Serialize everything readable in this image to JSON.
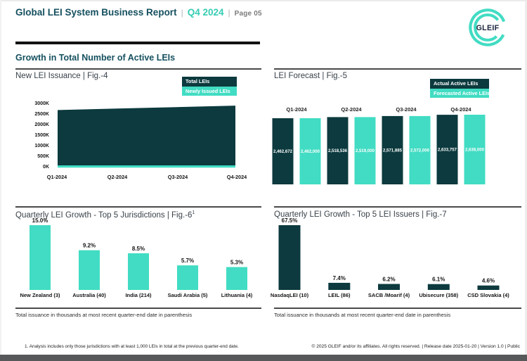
{
  "header": {
    "title": "Global LEI System Business Report",
    "sep": "|",
    "period": "Q4 2024",
    "page": "Page 05"
  },
  "logo": {
    "text": "GLEIF"
  },
  "section": {
    "title": "Growth in Total Number of Active LEIs"
  },
  "colors": {
    "dark_teal": "#0c3a3e",
    "turquoise": "#41dcc3",
    "header_teal": "#15505f",
    "accent_teal": "#36cdb4",
    "footer_bar": "#57585a"
  },
  "chart_notes": {
    "left": "Total issuance in thousands at most recent quarter-end date in parenthesis",
    "right": "Total issuance in thousands at most recent quarter-end date in parenthesis"
  },
  "footer": {
    "footnote": "1. Analysis includes only those jurisdictions with at least 1,000 LEIs in total at the previous quarter-end date.",
    "copyright": "© 2025 GLEIF and/or its affiliates. All rights reserved. | Release date 2025-01-20 | Version 1.0 | Public"
  },
  "chart_data": [
    {
      "id": "fig4",
      "type": "area",
      "title": "New LEI Issuance | Fig.-4",
      "legend": [
        "Total LEIs",
        "Newly Issued LEIs"
      ],
      "x": [
        "Q1-2024",
        "Q2-2024",
        "Q3-2024",
        "Q4-2024"
      ],
      "y_ticks": [
        "3000K",
        "2500K",
        "2000K",
        "1500K",
        "1000K",
        "500K",
        "0K"
      ],
      "ylim_K": [
        0,
        3000
      ],
      "grid": false,
      "legend_position": "top-right",
      "series": [
        {
          "name": "Total LEIs",
          "approx_values_K": [
            2720,
            2790,
            2860,
            2930
          ]
        },
        {
          "name": "Newly Issued LEIs",
          "approx_values_K": [
            60,
            62,
            67,
            77
          ]
        }
      ]
    },
    {
      "id": "fig5",
      "type": "bar",
      "title": "LEI Forecast | Fig.-5",
      "legend": [
        "Actual Active LEIs",
        "Forecasted Active LEIs"
      ],
      "legend_position": "top-right",
      "categories": [
        "Q1-2024",
        "Q2-2024",
        "Q3-2024",
        "Q4-2024"
      ],
      "series": [
        {
          "name": "Actual Active LEIs",
          "values": [
            2462672,
            2518536,
            2571885,
            2633757
          ],
          "labels": [
            "2,462,672",
            "2,518,536",
            "2,571,885",
            "2,633,757"
          ]
        },
        {
          "name": "Forecasted Active LEIs",
          "values": [
            2462000,
            2519000,
            2572000,
            2638000
          ],
          "labels": [
            "2,462,000",
            "2,519,000",
            "2,572,000",
            "2,638,000"
          ]
        }
      ]
    },
    {
      "id": "fig6",
      "type": "bar",
      "title": "Quarterly LEI Growth - Top 5 Jurisdictions | Fig.-6",
      "title_sup": "1",
      "categories": [
        "New Zealand (3)",
        "Australia (40)",
        "India (214)",
        "Saudi Arabia (5)",
        "Lithuania (4)"
      ],
      "values": [
        15.0,
        9.2,
        8.5,
        5.7,
        5.3
      ],
      "value_labels": [
        "15.0%",
        "9.2%",
        "8.5%",
        "5.7%",
        "5.3%"
      ],
      "unit": "%"
    },
    {
      "id": "fig7",
      "type": "bar",
      "title": "Quarterly LEI Growth - Top 5 LEI Issuers | Fig.-7",
      "categories": [
        "NasdaqLEI (10)",
        "LEIL (86)",
        "SACB /Moarif (4)",
        "Ubisecure (358)",
        "CSD Slovakia (4)"
      ],
      "values": [
        67.5,
        7.4,
        6.2,
        6.1,
        4.6
      ],
      "value_labels": [
        "67.5%",
        "7.4%",
        "6.2%",
        "6.1%",
        "4.6%"
      ],
      "unit": "%"
    }
  ]
}
